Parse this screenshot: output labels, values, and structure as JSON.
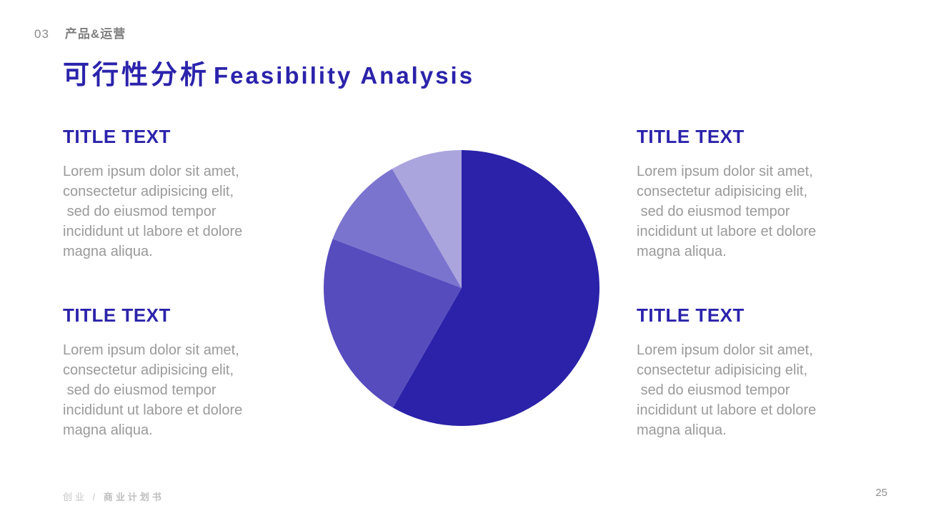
{
  "header": {
    "index": "03",
    "section": "产品&运营"
  },
  "title": {
    "zh": "可行性分析",
    "en": "Feasibility Analysis"
  },
  "blocks": [
    {
      "title": "TITLE TEXT",
      "body": "Lorem ipsum dolor sit amet,\nconsectetur adipisicing elit,\n sed do eiusmod tempor\nincididunt ut labore et dolore\nmagna aliqua."
    },
    {
      "title": "TITLE TEXT",
      "body": "Lorem ipsum dolor sit amet,\nconsectetur adipisicing elit,\n sed do eiusmod tempor\nincididunt ut labore et dolore\nmagna aliqua."
    },
    {
      "title": "TITLE TEXT",
      "body": "Lorem ipsum dolor sit amet,\nconsectetur adipisicing elit,\n sed do eiusmod tempor\nincididunt ut labore et dolore\nmagna aliqua."
    },
    {
      "title": "TITLE TEXT",
      "body": "Lorem ipsum dolor sit amet,\nconsectetur adipisicing elit,\n sed do eiusmod tempor\nincididunt ut labore et dolore\nmagna aliqua."
    }
  ],
  "footer": {
    "brand_prefix": "创业 / ",
    "brand_suffix": "商业计划书",
    "page": "25"
  },
  "colors": {
    "accent": "#2b23ab",
    "body_text": "#9a9a9a",
    "header_text": "#8b8b8b",
    "footer_text": "#c6c6c6"
  },
  "chart_data": {
    "type": "pie",
    "title": "",
    "values": [
      58.3,
      22.5,
      10.8,
      8.4
    ],
    "unit": "percent",
    "colors": [
      "#2b22a9",
      "#564cbe",
      "#7b74ce",
      "#aba5de"
    ],
    "start_angle_deg": 0,
    "direction": "clockwise",
    "legend": false,
    "data_labels": false,
    "grid": false
  }
}
